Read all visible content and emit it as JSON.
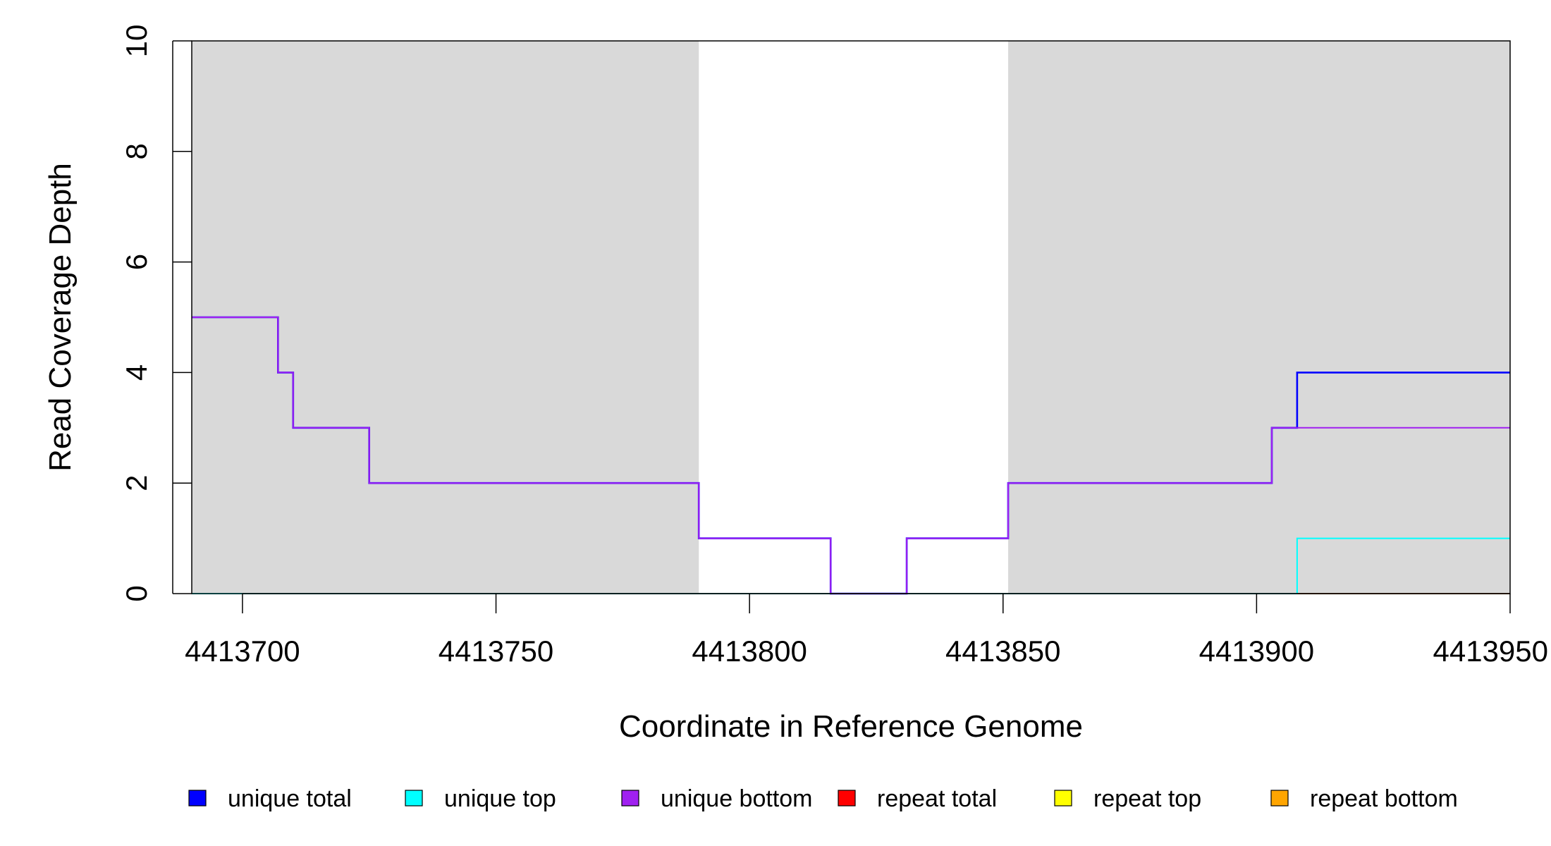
{
  "chart_data": {
    "type": "line",
    "title": "",
    "xlabel": "Coordinate in Reference Genome",
    "ylabel": "Read Coverage Depth",
    "xlim": [
      4413690,
      4413950
    ],
    "ylim": [
      0,
      10
    ],
    "x_ticks": [
      {
        "value": 4413700,
        "label": "4413700"
      },
      {
        "value": 4413750,
        "label": "4413750"
      },
      {
        "value": 4413800,
        "label": "4413800"
      },
      {
        "value": 4413850,
        "label": "4413850"
      },
      {
        "value": 4413900,
        "label": "4413900"
      },
      {
        "value": 4413950,
        "label": "4413950"
      }
    ],
    "y_ticks": [
      {
        "value": 0,
        "label": "0"
      },
      {
        "value": 2,
        "label": "2"
      },
      {
        "value": 4,
        "label": "4"
      },
      {
        "value": 6,
        "label": "6"
      },
      {
        "value": 8,
        "label": "8"
      },
      {
        "value": 10,
        "label": "10"
      }
    ],
    "grid": false,
    "legend_position": "bottom",
    "shaded_regions": [
      {
        "x0": 4413690,
        "x1": 4413790,
        "color": "#d9d9d9"
      },
      {
        "x0": 4413851,
        "x1": 4413950,
        "color": "#d9d9d9"
      }
    ],
    "series": [
      {
        "name": "unique total",
        "color": "#0000ff",
        "points": [
          [
            4413690,
            5
          ],
          [
            4413707,
            5
          ],
          [
            4413707,
            4
          ],
          [
            4413710,
            4
          ],
          [
            4413710,
            3
          ],
          [
            4413725,
            3
          ],
          [
            4413725,
            2
          ],
          [
            4413790,
            2
          ],
          [
            4413790,
            1
          ],
          [
            4413816,
            1
          ],
          [
            4413816,
            0
          ],
          [
            4413831,
            0
          ],
          [
            4413831,
            1
          ],
          [
            4413851,
            1
          ],
          [
            4413851,
            2
          ],
          [
            4413903,
            2
          ],
          [
            4413903,
            3
          ],
          [
            4413908,
            3
          ],
          [
            4413908,
            4
          ],
          [
            4413950,
            4
          ]
        ]
      },
      {
        "name": "unique top",
        "color": "#00ffff",
        "points": [
          [
            4413690,
            0
          ],
          [
            4413908,
            0
          ],
          [
            4413908,
            1
          ],
          [
            4413950,
            1
          ]
        ]
      },
      {
        "name": "unique bottom",
        "color": "#a020f0",
        "points": [
          [
            4413690,
            5
          ],
          [
            4413707,
            5
          ],
          [
            4413707,
            4
          ],
          [
            4413710,
            4
          ],
          [
            4413710,
            3
          ],
          [
            4413725,
            3
          ],
          [
            4413725,
            2
          ],
          [
            4413790,
            2
          ],
          [
            4413790,
            1
          ],
          [
            4413816,
            1
          ],
          [
            4413816,
            0
          ],
          [
            4413831,
            0
          ],
          [
            4413831,
            1
          ],
          [
            4413851,
            1
          ],
          [
            4413851,
            2
          ],
          [
            4413903,
            2
          ],
          [
            4413903,
            3
          ],
          [
            4413950,
            3
          ]
        ]
      },
      {
        "name": "repeat total",
        "color": "#ff0000",
        "points": [
          [
            4413690,
            0
          ],
          [
            4413950,
            0
          ]
        ]
      },
      {
        "name": "repeat top",
        "color": "#ffff00",
        "points": [
          [
            4413690,
            0
          ],
          [
            4413950,
            0
          ]
        ]
      },
      {
        "name": "repeat bottom",
        "color": "#ffa500",
        "points": [
          [
            4413690,
            0
          ],
          [
            4413950,
            0
          ]
        ]
      }
    ]
  }
}
